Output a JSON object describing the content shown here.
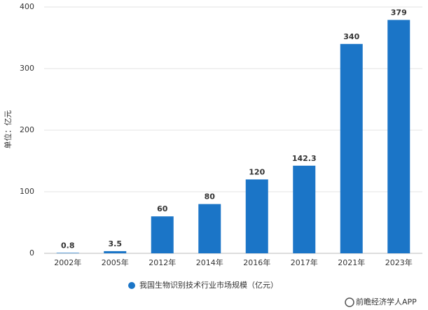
{
  "chart_data": {
    "type": "bar",
    "categories": [
      "2002年",
      "2005年",
      "2012年",
      "2014年",
      "2016年",
      "2017年",
      "2021年",
      "2023年"
    ],
    "series": [
      {
        "name": "我国生物识别技术行业市场规模（亿元）",
        "color": "#1b75c7",
        "values": [
          0.8,
          3.5,
          60,
          80,
          120,
          142.3,
          340,
          379
        ]
      }
    ],
    "y_label": "单位：亿元",
    "ylim": [
      0,
      400
    ],
    "yticks": [
      0,
      100,
      200,
      300,
      400
    ],
    "grid": true,
    "source": "前瞻经济学人APP"
  }
}
